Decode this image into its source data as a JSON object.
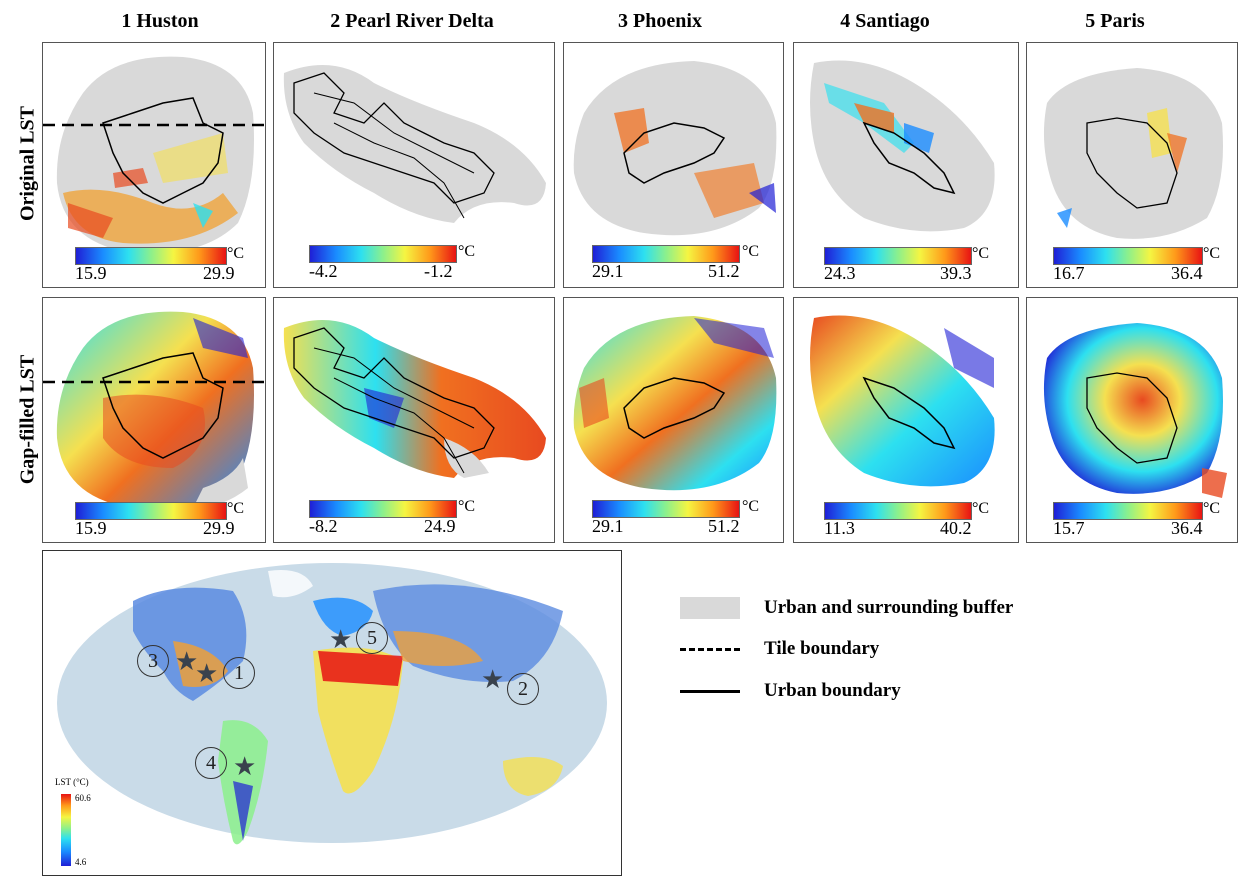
{
  "columns": [
    {
      "title": "1 Huston"
    },
    {
      "title": "2 Pearl River Delta"
    },
    {
      "title": "3 Phoenix"
    },
    {
      "title": "4 Santiago"
    },
    {
      "title": "5 Paris"
    }
  ],
  "rows": [
    {
      "title": "Original LST"
    },
    {
      "title": "Gap-filled LST"
    }
  ],
  "unit": "°C",
  "original_ranges": [
    {
      "min": "15.9",
      "max": "29.9"
    },
    {
      "min": "-4.2",
      "max": "-1.2"
    },
    {
      "min": "29.1",
      "max": "51.2"
    },
    {
      "min": "24.3",
      "max": "39.3"
    },
    {
      "min": "16.7",
      "max": "36.4"
    }
  ],
  "gapfilled_ranges": [
    {
      "min": "15.9",
      "max": "29.9"
    },
    {
      "min": "-8.2",
      "max": "24.9"
    },
    {
      "min": "29.1",
      "max": "51.2"
    },
    {
      "min": "11.3",
      "max": "40.2"
    },
    {
      "min": "15.7",
      "max": "36.4"
    }
  ],
  "legend": {
    "buffer": "Urban and surrounding buffer",
    "tile": "Tile boundary",
    "urban": "Urban boundary"
  },
  "world_map": {
    "colorbar_title": "LST (°C)",
    "colorbar_max": "60.6",
    "colorbar_min": "4.6",
    "site_labels": [
      "1",
      "2",
      "3",
      "4",
      "5"
    ]
  },
  "colors": {
    "buffer_gray": "#d9d9d9",
    "ocean": "#c9dbe8",
    "star": "#39424d"
  }
}
